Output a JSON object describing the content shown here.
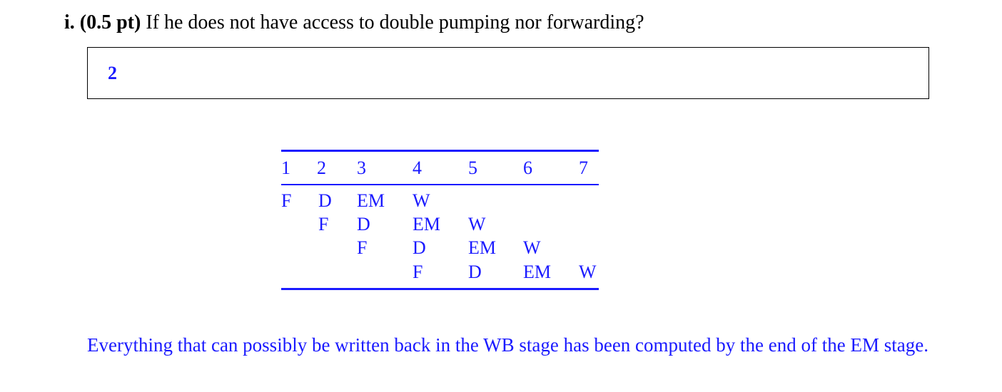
{
  "question": {
    "label": "i. (0.5 pt)",
    "text": "If he does not have access to double pumping nor forwarding?"
  },
  "answer": {
    "value": "2"
  },
  "pipeline_table": {
    "header": [
      "1",
      "2",
      "3",
      "4",
      "5",
      "6",
      "7"
    ],
    "rows": [
      [
        "F",
        "D",
        "EM",
        "W",
        "",
        "",
        ""
      ],
      [
        "",
        "F",
        "D",
        "EM",
        "W",
        "",
        ""
      ],
      [
        "",
        "",
        "F",
        "D",
        "EM",
        "W",
        ""
      ],
      [
        "",
        "",
        "",
        "F",
        "D",
        "EM",
        "W"
      ]
    ]
  },
  "explanation": {
    "text": "Everything that can possibly be written back in the WB stage has been computed by the end of the EM stage."
  },
  "colors": {
    "answer_text": "#1a1aff",
    "question_text": "#000000"
  }
}
